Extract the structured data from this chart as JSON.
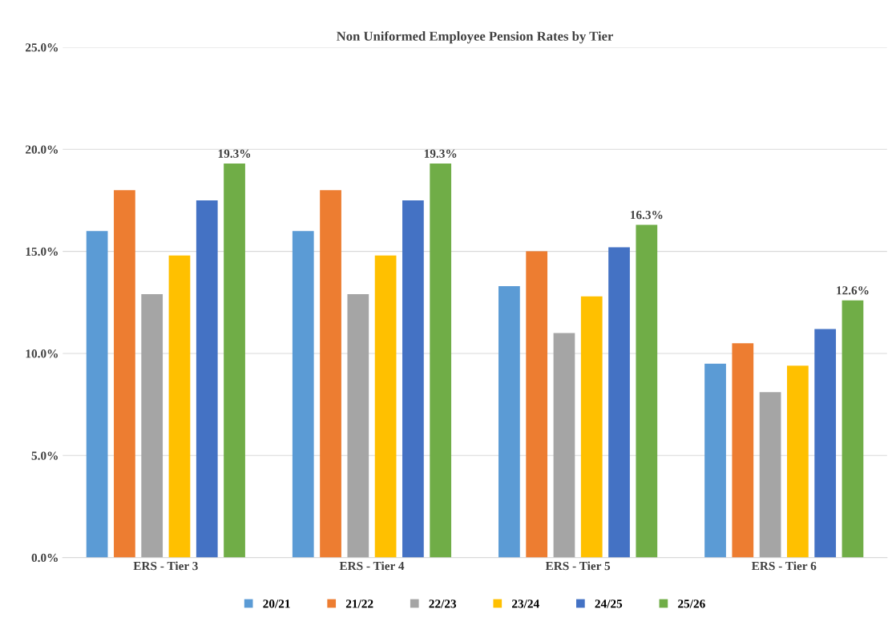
{
  "chart_data": {
    "type": "bar",
    "title": "Non Uniformed Employee Pension Rates by Tier",
    "categories": [
      "ERS - Tier 3",
      "ERS - Tier 4",
      "ERS - Tier 5",
      "ERS - Tier 6"
    ],
    "series": [
      {
        "name": "20/21",
        "color": "#5b9bd5",
        "values": [
          16.0,
          16.0,
          13.3,
          9.5
        ]
      },
      {
        "name": "21/22",
        "color": "#ed7d31",
        "values": [
          18.0,
          18.0,
          15.0,
          10.5
        ]
      },
      {
        "name": "22/23",
        "color": "#a5a5a5",
        "values": [
          12.9,
          12.9,
          11.0,
          8.1
        ]
      },
      {
        "name": "23/24",
        "color": "#ffc000",
        "values": [
          14.8,
          14.8,
          12.8,
          9.4
        ]
      },
      {
        "name": "24/25",
        "color": "#4472c4",
        "values": [
          17.5,
          17.5,
          15.2,
          11.2
        ]
      },
      {
        "name": "25/26",
        "color": "#70ad47",
        "values": [
          19.3,
          19.3,
          16.3,
          12.6
        ],
        "value_labels": [
          "19.3%",
          "19.3%",
          "16.3%",
          "12.6%"
        ]
      }
    ],
    "ylim": [
      0,
      25
    ],
    "yticks": [
      {
        "value": 0,
        "label": "0.0%"
      },
      {
        "value": 5,
        "label": "5.0%"
      },
      {
        "value": 10,
        "label": "10.0%"
      },
      {
        "value": 15,
        "label": "15.0%"
      },
      {
        "value": 20,
        "label": "20.0%"
      },
      {
        "value": 25,
        "label": "25.0%"
      }
    ],
    "grid": "y",
    "legend": "bottom"
  }
}
